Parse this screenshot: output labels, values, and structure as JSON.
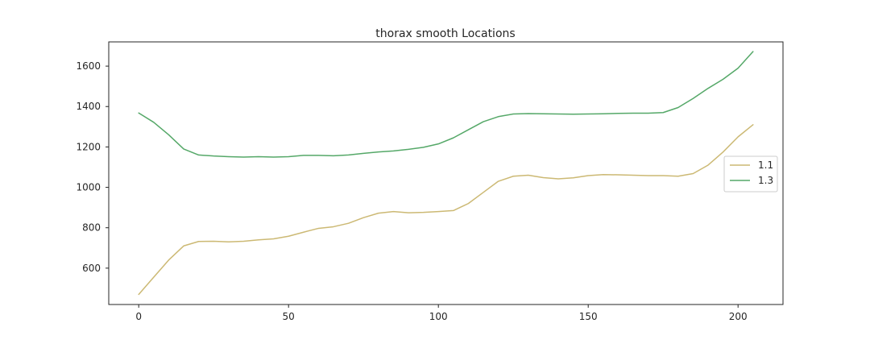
{
  "chart_data": {
    "type": "line",
    "title": "thorax smooth Locations",
    "xlabel": "",
    "ylabel": "",
    "xlim": [
      -10,
      215
    ],
    "ylim": [
      420,
      1720
    ],
    "xticks": [
      0,
      50,
      100,
      150,
      200
    ],
    "yticks": [
      600,
      800,
      1000,
      1200,
      1400,
      1600
    ],
    "grid": false,
    "legend_position": "center-right",
    "series": [
      {
        "name": "1.1",
        "color": "#ccb974",
        "points": [
          [
            0,
            470
          ],
          [
            5,
            555
          ],
          [
            10,
            640
          ],
          [
            15,
            710
          ],
          [
            20,
            732
          ],
          [
            25,
            733
          ],
          [
            30,
            730
          ],
          [
            35,
            733
          ],
          [
            40,
            740
          ],
          [
            45,
            745
          ],
          [
            50,
            758
          ],
          [
            55,
            778
          ],
          [
            60,
            797
          ],
          [
            65,
            805
          ],
          [
            70,
            822
          ],
          [
            75,
            850
          ],
          [
            80,
            872
          ],
          [
            85,
            880
          ],
          [
            90,
            874
          ],
          [
            95,
            876
          ],
          [
            100,
            880
          ],
          [
            105,
            885
          ],
          [
            110,
            920
          ],
          [
            115,
            975
          ],
          [
            120,
            1030
          ],
          [
            125,
            1055
          ],
          [
            130,
            1060
          ],
          [
            135,
            1048
          ],
          [
            140,
            1042
          ],
          [
            145,
            1047
          ],
          [
            150,
            1058
          ],
          [
            155,
            1063
          ],
          [
            160,
            1062
          ],
          [
            165,
            1060
          ],
          [
            170,
            1058
          ],
          [
            175,
            1058
          ],
          [
            180,
            1055
          ],
          [
            185,
            1068
          ],
          [
            190,
            1110
          ],
          [
            195,
            1175
          ],
          [
            200,
            1250
          ],
          [
            205,
            1310
          ]
        ]
      },
      {
        "name": "1.3",
        "color": "#55a868",
        "points": [
          [
            0,
            1368
          ],
          [
            5,
            1322
          ],
          [
            10,
            1260
          ],
          [
            15,
            1190
          ],
          [
            20,
            1160
          ],
          [
            25,
            1155
          ],
          [
            30,
            1152
          ],
          [
            35,
            1150
          ],
          [
            40,
            1152
          ],
          [
            45,
            1150
          ],
          [
            50,
            1152
          ],
          [
            55,
            1158
          ],
          [
            60,
            1158
          ],
          [
            65,
            1156
          ],
          [
            70,
            1160
          ],
          [
            75,
            1168
          ],
          [
            80,
            1175
          ],
          [
            85,
            1180
          ],
          [
            90,
            1188
          ],
          [
            95,
            1198
          ],
          [
            100,
            1215
          ],
          [
            105,
            1245
          ],
          [
            110,
            1285
          ],
          [
            115,
            1325
          ],
          [
            120,
            1350
          ],
          [
            125,
            1363
          ],
          [
            130,
            1365
          ],
          [
            135,
            1364
          ],
          [
            140,
            1363
          ],
          [
            145,
            1362
          ],
          [
            150,
            1363
          ],
          [
            155,
            1364
          ],
          [
            160,
            1366
          ],
          [
            165,
            1367
          ],
          [
            170,
            1367
          ],
          [
            175,
            1370
          ],
          [
            180,
            1395
          ],
          [
            185,
            1440
          ],
          [
            190,
            1490
          ],
          [
            195,
            1535
          ],
          [
            200,
            1590
          ],
          [
            205,
            1672
          ]
        ]
      }
    ]
  }
}
